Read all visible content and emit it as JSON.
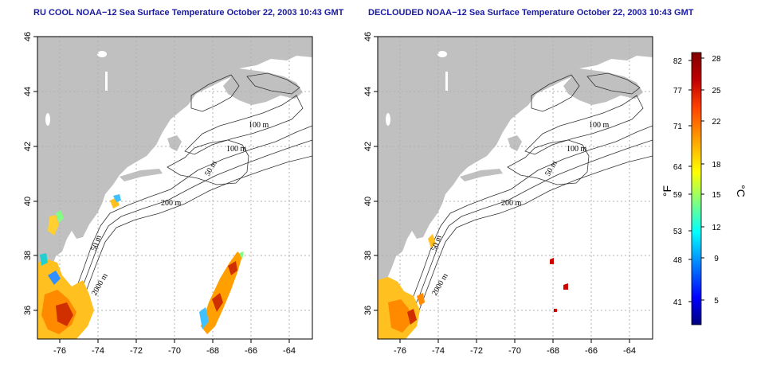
{
  "panels": [
    {
      "title": "RU COOL NOAA−12 Sea Surface Temperature October 22, 2003 10:43 GMT",
      "x_ticks": [
        "-76",
        "-74",
        "-72",
        "-70",
        "-68",
        "-66",
        "-64"
      ],
      "y_ticks": [
        "36",
        "38",
        "40",
        "42",
        "44",
        "46"
      ],
      "contour_labels": [
        "100 m",
        "100 m",
        "50 m",
        "200 m",
        "50 m",
        "2000 m"
      ]
    },
    {
      "title": "DECLOUDED NOAA−12 Sea Surface Temperature October 22, 2003 10:43 GMT",
      "x_ticks": [
        "-76",
        "-74",
        "-72",
        "-70",
        "-68",
        "-66",
        "-64"
      ],
      "y_ticks": [
        "36",
        "38",
        "40",
        "42",
        "44",
        "46"
      ],
      "contour_labels": [
        "100 m",
        "100 m",
        "50 m",
        "200 m",
        "50 m",
        "2000 m"
      ]
    }
  ],
  "colorbar": {
    "fahrenheit_label": "°F",
    "celsius_label": "°C",
    "fahrenheit_ticks": [
      "82",
      "77",
      "71",
      "64",
      "59",
      "53",
      "48",
      "41"
    ],
    "celsius_ticks": [
      "28",
      "25",
      "22",
      "18",
      "15",
      "12",
      "9",
      "5"
    ],
    "colors": [
      "#000080",
      "#0000ff",
      "#0080ff",
      "#00ffff",
      "#80ff80",
      "#ffff00",
      "#ffa000",
      "#ff4000",
      "#c00000",
      "#800000"
    ]
  },
  "colors": {
    "land": "#c0c0c0",
    "title": "#1a1aa0",
    "grid": "#b0b0b0"
  }
}
